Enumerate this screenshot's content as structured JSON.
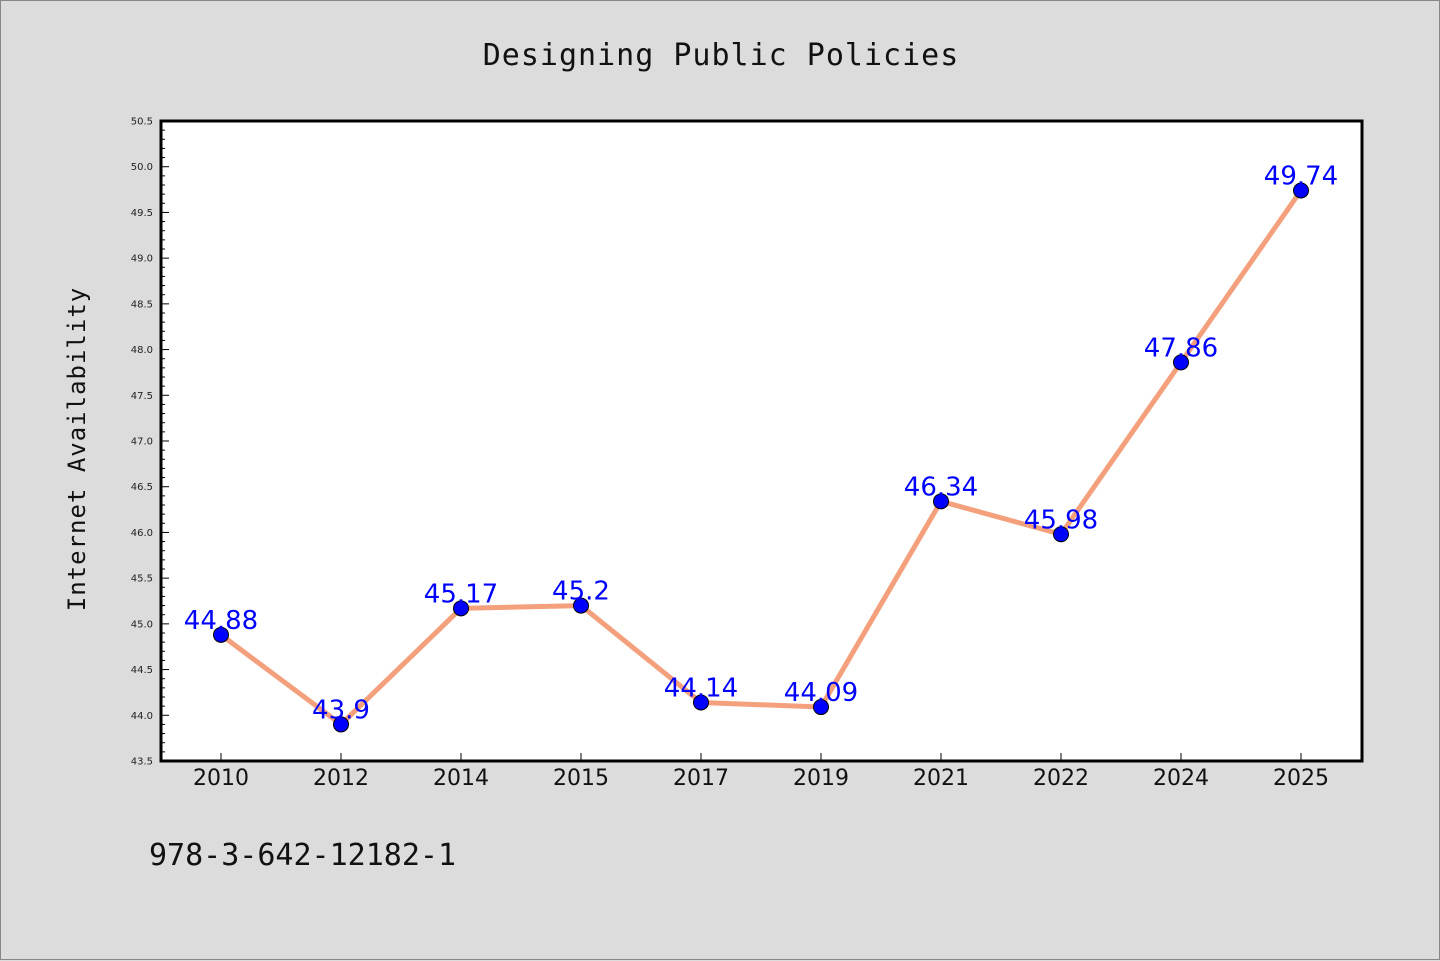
{
  "chart_data": {
    "type": "line",
    "title": "Designing Public Policies",
    "ylabel": "Internet Availability",
    "xlabel": "",
    "categories": [
      "2010",
      "2012",
      "2014",
      "2015",
      "2017",
      "2019",
      "2021",
      "2022",
      "2024",
      "2025"
    ],
    "series": [
      {
        "values": [
          44.88,
          43.9,
          45.17,
          45.2,
          44.14,
          44.09,
          46.34,
          45.98,
          47.86,
          49.74
        ],
        "labels": [
          "44.88",
          "43.9",
          "45.17",
          "45.2",
          "44.14",
          "44.09",
          "46.34",
          "45.98",
          "47.86",
          "49.74"
        ],
        "line_color": "#f4a07c",
        "marker_color": "#0000ff"
      }
    ],
    "ylim": [
      43.5,
      50.5
    ],
    "yticks": [
      "43.5",
      "44.0",
      "44.5",
      "45.0",
      "45.5",
      "46.0",
      "46.5",
      "47.0",
      "47.5",
      "48.0",
      "48.5",
      "49.0",
      "49.5",
      "50.0",
      "50.5"
    ],
    "grid": false,
    "label_color": "#0000ff"
  },
  "footer": {
    "isbn": "978-3-642-12182-1"
  }
}
